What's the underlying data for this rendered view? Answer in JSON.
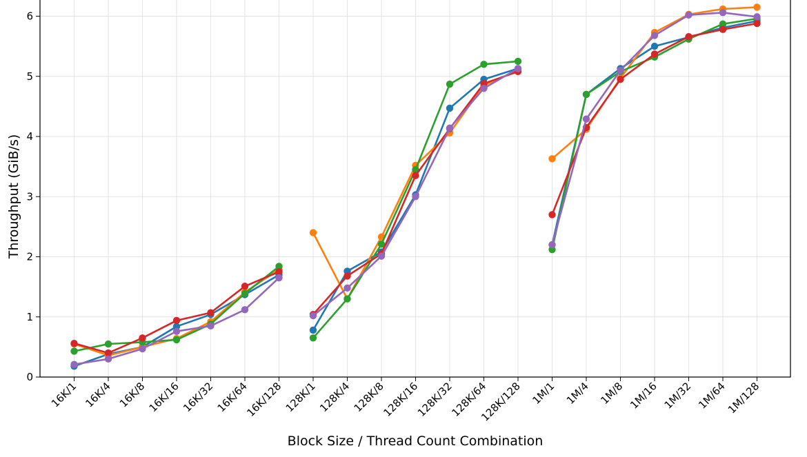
{
  "chart_data": {
    "type": "line",
    "title": "",
    "xlabel": "Block Size / Thread Count Combination",
    "ylabel": "Throughput (GiB/s)",
    "ylim": [
      0,
      6.25
    ],
    "yticks": [
      "0",
      "1",
      "2",
      "3",
      "4",
      "5",
      "6"
    ],
    "grid": true,
    "legend": "none",
    "categories": [
      "16K/1",
      "16K/4",
      "16K/8",
      "16K/16",
      "16K/32",
      "16K/64",
      "16K/128",
      "128K/1",
      "128K/4",
      "128K/8",
      "128K/16",
      "128K/32",
      "128K/64",
      "128K/128",
      "1M/1",
      "1M/4",
      "1M/8",
      "1M/16",
      "1M/32",
      "1M/64",
      "1M/128"
    ],
    "series": [
      {
        "color": "#1f77b4",
        "values": [
          0.18,
          0.38,
          0.5,
          0.84,
          1.04,
          1.37,
          1.7,
          0.78,
          1.76,
          2.08,
          3.03,
          4.47,
          4.95,
          5.13,
          2.2,
          4.7,
          5.13,
          5.5,
          5.65,
          5.81,
          5.92
        ]
      },
      {
        "color": "#ff7f0e",
        "values": [
          0.55,
          0.36,
          0.5,
          0.64,
          0.92,
          1.41,
          1.79,
          2.4,
          1.3,
          2.33,
          3.52,
          4.06,
          4.85,
          5.1,
          3.63,
          4.12,
          4.97,
          5.73,
          6.03,
          6.12,
          6.15
        ]
      },
      {
        "color": "#2ca02c",
        "values": [
          0.43,
          0.55,
          0.58,
          0.62,
          0.88,
          1.39,
          1.84,
          0.65,
          1.3,
          2.21,
          3.45,
          4.87,
          5.2,
          5.25,
          2.12,
          4.7,
          5.08,
          5.32,
          5.62,
          5.87,
          5.96
        ]
      },
      {
        "color": "#d62728",
        "values": [
          0.56,
          0.4,
          0.65,
          0.94,
          1.07,
          1.51,
          1.75,
          1.04,
          1.68,
          2.05,
          3.35,
          4.13,
          4.88,
          5.08,
          2.7,
          4.15,
          4.95,
          5.37,
          5.66,
          5.78,
          5.88
        ]
      },
      {
        "color": "#9467bd",
        "values": [
          0.21,
          0.3,
          0.47,
          0.76,
          0.85,
          1.12,
          1.65,
          1.02,
          1.48,
          2.01,
          3.0,
          4.14,
          4.8,
          5.13,
          2.2,
          4.29,
          5.1,
          5.68,
          6.02,
          6.06,
          5.99
        ]
      }
    ],
    "segments": [
      [
        0,
        6
      ],
      [
        7,
        13
      ],
      [
        14,
        20
      ]
    ]
  }
}
